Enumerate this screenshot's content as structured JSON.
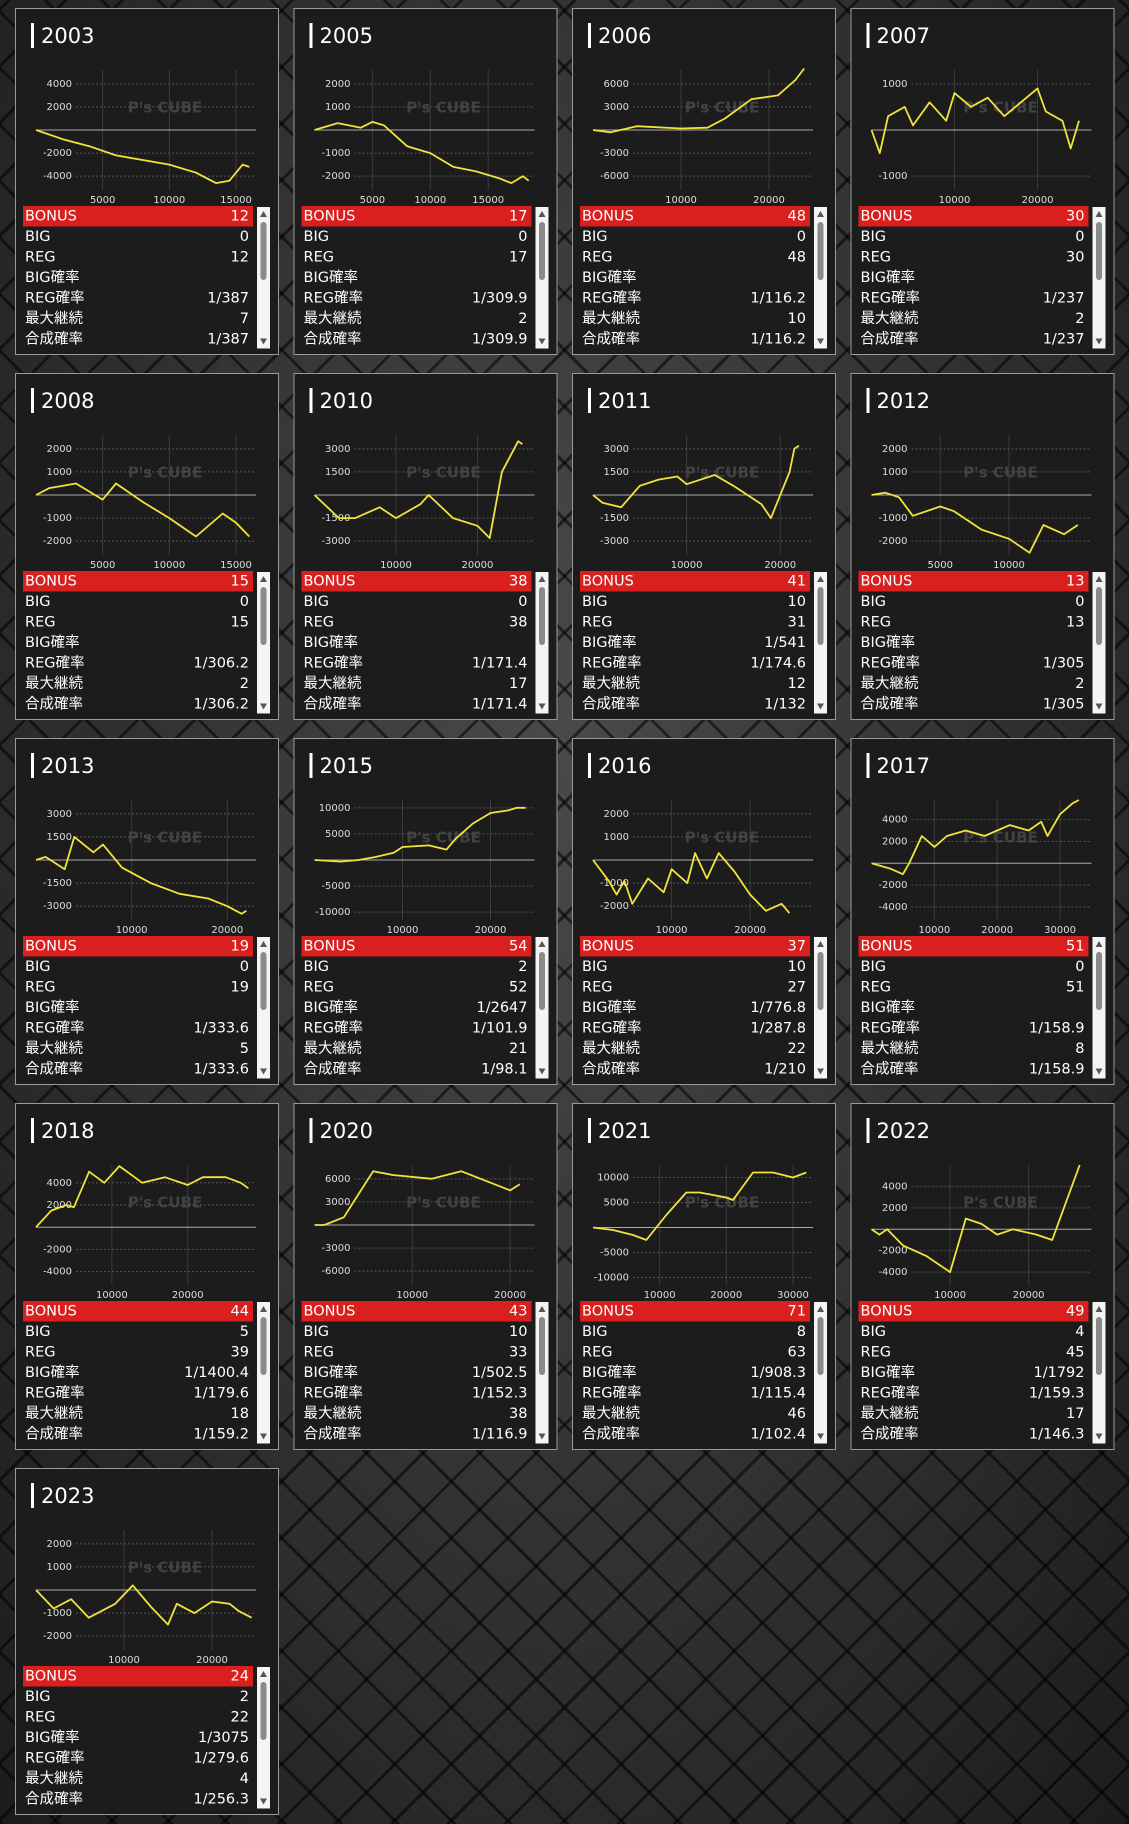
{
  "color": "#f2e33c",
  "watermark": "P's CUBE",
  "labels": [
    "BONUS",
    "BIG",
    "REG",
    "BIG確率",
    "REG確率",
    "最大継続",
    "合成確率"
  ],
  "cards": [
    {
      "title": "2003",
      "chart": {
        "type": "line",
        "x": [
          0,
          2000,
          4000,
          6000,
          8000,
          10000,
          12000,
          13500,
          14500,
          15500,
          16000
        ],
        "values": [
          0,
          -800,
          -1400,
          -2200,
          -2600,
          -3000,
          -3700,
          -4600,
          -4400,
          -3000,
          -3200
        ],
        "xlim": [
          0,
          16500
        ],
        "ylim": [
          -5200,
          5200
        ],
        "xticks": [
          5000,
          10000,
          15000
        ],
        "yticks": [
          4000,
          2000,
          -2000,
          -4000
        ]
      },
      "stats": [
        12,
        0,
        12,
        null,
        "1/387",
        7,
        "1/387"
      ]
    },
    {
      "title": "2005",
      "chart": {
        "type": "line",
        "x": [
          0,
          2000,
          4000,
          5000,
          6000,
          8000,
          10000,
          12000,
          14000,
          16000,
          17000,
          18000,
          18500
        ],
        "values": [
          0,
          300,
          100,
          350,
          200,
          -700,
          -1000,
          -1600,
          -1800,
          -2100,
          -2300,
          -2000,
          -2200
        ],
        "xlim": [
          0,
          19000
        ],
        "ylim": [
          -2600,
          2600
        ],
        "xticks": [
          5000,
          10000,
          15000
        ],
        "yticks": [
          2000,
          1000,
          -1000,
          -2000
        ]
      },
      "stats": [
        17,
        0,
        17,
        null,
        "1/309.9",
        2,
        "1/309.9"
      ]
    },
    {
      "title": "2006",
      "chart": {
        "type": "line",
        "x": [
          0,
          2000,
          5000,
          10000,
          13000,
          15000,
          18000,
          21000,
          23000,
          24000
        ],
        "values": [
          0,
          -300,
          500,
          200,
          300,
          1500,
          4000,
          4500,
          6500,
          8000
        ],
        "xlim": [
          0,
          25000
        ],
        "ylim": [
          -7800,
          7800
        ],
        "xticks": [
          10000,
          20000
        ],
        "yticks": [
          6000,
          3000,
          -3000,
          -6000
        ]
      },
      "stats": [
        48,
        0,
        48,
        null,
        "1/116.2",
        10,
        "1/116.2"
      ]
    },
    {
      "title": "2007",
      "chart": {
        "type": "line",
        "x": [
          0,
          1000,
          2000,
          4000,
          5000,
          7000,
          9000,
          10000,
          12000,
          14000,
          16000,
          18000,
          20000,
          21000,
          23000,
          24000,
          25000
        ],
        "values": [
          0,
          -500,
          300,
          500,
          100,
          600,
          200,
          800,
          500,
          700,
          300,
          600,
          900,
          400,
          200,
          -400,
          200
        ],
        "xlim": [
          0,
          26500
        ],
        "ylim": [
          -1300,
          1300
        ],
        "xticks": [
          10000,
          20000
        ],
        "yticks": [
          1000,
          -1000
        ]
      },
      "stats": [
        30,
        0,
        30,
        null,
        "1/237",
        2,
        "1/237"
      ]
    },
    {
      "title": "2008",
      "chart": {
        "type": "line",
        "x": [
          0,
          1000,
          3000,
          5000,
          6000,
          8000,
          10000,
          12000,
          14000,
          15000,
          16000
        ],
        "values": [
          0,
          300,
          500,
          -200,
          500,
          -300,
          -1000,
          -1800,
          -800,
          -1200,
          -1800
        ],
        "xlim": [
          0,
          16500
        ],
        "ylim": [
          -2600,
          2600
        ],
        "xticks": [
          5000,
          10000,
          15000
        ],
        "yticks": [
          2000,
          1000,
          -1000,
          -2000
        ]
      },
      "stats": [
        15,
        0,
        15,
        null,
        "1/306.2",
        2,
        "1/306.2"
      ]
    },
    {
      "title": "2010",
      "chart": {
        "type": "line",
        "x": [
          0,
          3000,
          5000,
          8000,
          10000,
          13000,
          14000,
          17000,
          20000,
          21500,
          23000,
          25000,
          25500
        ],
        "values": [
          0,
          -1500,
          -1500,
          -800,
          -1500,
          -600,
          0,
          -1500,
          -2000,
          -2800,
          1500,
          3500,
          3300
        ],
        "xlim": [
          0,
          27000
        ],
        "ylim": [
          -3900,
          3900
        ],
        "xticks": [
          10000,
          20000
        ],
        "yticks": [
          3000,
          1500,
          -1500,
          -3000
        ]
      },
      "stats": [
        38,
        0,
        38,
        null,
        "1/171.4",
        17,
        "1/171.4"
      ]
    },
    {
      "title": "2011",
      "chart": {
        "type": "line",
        "x": [
          0,
          1000,
          3000,
          5000,
          7000,
          9000,
          10000,
          13000,
          15000,
          18000,
          19000,
          21000,
          21500,
          22000
        ],
        "values": [
          0,
          -500,
          -800,
          600,
          1000,
          1200,
          700,
          1300,
          600,
          -600,
          -1500,
          1500,
          3000,
          3200
        ],
        "xlim": [
          0,
          23500
        ],
        "ylim": [
          -3900,
          3900
        ],
        "xticks": [
          10000,
          20000
        ],
        "yticks": [
          3000,
          1500,
          -1500,
          -3000
        ]
      },
      "stats": [
        41,
        10,
        31,
        "1/541",
        "1/174.6",
        12,
        "1/132"
      ]
    },
    {
      "title": "2012",
      "chart": {
        "type": "line",
        "x": [
          0,
          1000,
          2000,
          3000,
          5000,
          6000,
          8000,
          10000,
          11500,
          12500,
          14000,
          14500,
          15000
        ],
        "values": [
          0,
          100,
          -100,
          -900,
          -500,
          -700,
          -1500,
          -1900,
          -2500,
          -1300,
          -1700,
          -1500,
          -1300
        ],
        "xlim": [
          0,
          16000
        ],
        "ylim": [
          -2600,
          2600
        ],
        "xticks": [
          5000,
          10000
        ],
        "yticks": [
          2000,
          1000,
          -1000,
          -2000
        ]
      },
      "stats": [
        13,
        0,
        13,
        null,
        "1/305",
        2,
        "1/305"
      ]
    },
    {
      "title": "2013",
      "chart": {
        "type": "line",
        "x": [
          0,
          1000,
          3000,
          4000,
          6000,
          7000,
          9000,
          12000,
          15000,
          18000,
          20000,
          21500,
          22000
        ],
        "values": [
          0,
          200,
          -600,
          1500,
          500,
          1000,
          -500,
          -1500,
          -2200,
          -2500,
          -3000,
          -3500,
          -3300
        ],
        "xlim": [
          0,
          23000
        ],
        "ylim": [
          -3900,
          3900
        ],
        "xticks": [
          10000,
          20000
        ],
        "yticks": [
          3000,
          1500,
          -1500,
          -3000
        ]
      },
      "stats": [
        19,
        0,
        19,
        null,
        "1/333.6",
        5,
        "1/333.6"
      ]
    },
    {
      "title": "2015",
      "chart": {
        "type": "line",
        "x": [
          0,
          3000,
          5000,
          7000,
          9000,
          10000,
          13000,
          15000,
          16000,
          18000,
          20000,
          22000,
          23000,
          24000
        ],
        "values": [
          0,
          -300,
          0,
          600,
          1400,
          2500,
          2800,
          2000,
          4000,
          7000,
          9000,
          9500,
          10000,
          10000
        ],
        "xlim": [
          0,
          25000
        ],
        "ylim": [
          -11500,
          11500
        ],
        "xticks": [
          10000,
          20000
        ],
        "yticks": [
          10000,
          5000,
          -5000,
          -10000
        ]
      },
      "stats": [
        54,
        2,
        52,
        "1/2647",
        "1/101.9",
        21,
        "1/98.1"
      ]
    },
    {
      "title": "2016",
      "chart": {
        "type": "line",
        "x": [
          0,
          2000,
          3000,
          4000,
          5000,
          7000,
          9000,
          10000,
          12000,
          13000,
          14500,
          16000,
          18000,
          20000,
          22000,
          24000,
          25000
        ],
        "values": [
          0,
          -900,
          -1500,
          -900,
          -1900,
          -800,
          -1400,
          -400,
          -1000,
          300,
          -800,
          300,
          -500,
          -1500,
          -2200,
          -1900,
          -2300
        ],
        "xlim": [
          0,
          28000
        ],
        "ylim": [
          -2600,
          2600
        ],
        "xticks": [
          10000,
          20000
        ],
        "yticks": [
          2000,
          1000,
          -1000,
          -2000
        ]
      },
      "stats": [
        37,
        10,
        27,
        "1/776.8",
        "1/287.8",
        22,
        "1/210"
      ]
    },
    {
      "title": "2017",
      "chart": {
        "type": "line",
        "x": [
          0,
          3000,
          5000,
          6000,
          8000,
          10000,
          12000,
          15000,
          18000,
          20000,
          22000,
          25000,
          27000,
          28000,
          30000,
          32000,
          33000
        ],
        "values": [
          0,
          -500,
          -1000,
          0,
          2500,
          1500,
          2500,
          3000,
          2500,
          3000,
          3500,
          3000,
          3800,
          2500,
          4500,
          5500,
          5800
        ],
        "xlim": [
          0,
          35000
        ],
        "ylim": [
          -5200,
          5800
        ],
        "xticks": [
          10000,
          20000,
          30000
        ],
        "yticks": [
          4000,
          2000,
          -2000,
          -4000
        ]
      },
      "stats": [
        51,
        0,
        51,
        null,
        "1/158.9",
        8,
        "1/158.9"
      ]
    },
    {
      "title": "2018",
      "chart": {
        "type": "line",
        "x": [
          0,
          2000,
          4000,
          5000,
          7000,
          9000,
          11000,
          14000,
          17000,
          20000,
          22000,
          25000,
          27000,
          28000
        ],
        "values": [
          0,
          1500,
          2000,
          1800,
          5000,
          4000,
          5500,
          4000,
          4500,
          3800,
          4500,
          4500,
          4000,
          3500
        ],
        "xlim": [
          0,
          29000
        ],
        "ylim": [
          -5200,
          5600
        ],
        "xticks": [
          10000,
          20000
        ],
        "yticks": [
          4000,
          2000,
          -2000,
          -4000
        ]
      },
      "stats": [
        44,
        5,
        39,
        "1/1400.4",
        "1/179.6",
        18,
        "1/159.2"
      ]
    },
    {
      "title": "2020",
      "chart": {
        "type": "line",
        "x": [
          0,
          1000,
          3000,
          5000,
          6000,
          8000,
          12000,
          15000,
          18000,
          20000,
          21000
        ],
        "values": [
          0,
          0,
          1000,
          5000,
          7000,
          6500,
          6000,
          7000,
          5500,
          4500,
          5300
        ],
        "xlim": [
          0,
          22500
        ],
        "ylim": [
          -7800,
          7800
        ],
        "xticks": [
          10000,
          20000
        ],
        "yticks": [
          6000,
          3000,
          -3000,
          -6000
        ]
      },
      "stats": [
        43,
        10,
        33,
        "1/502.5",
        "1/152.3",
        38,
        "1/116.9"
      ]
    },
    {
      "title": "2021",
      "chart": {
        "type": "line",
        "x": [
          0,
          3000,
          6000,
          8000,
          11000,
          14000,
          16000,
          20000,
          21000,
          24000,
          27000,
          30000,
          32000
        ],
        "values": [
          0,
          -500,
          -1500,
          -2500,
          2500,
          7000,
          7000,
          6000,
          5500,
          11000,
          11000,
          10000,
          11000
        ],
        "xlim": [
          0,
          33000
        ],
        "ylim": [
          -11500,
          12500
        ],
        "xticks": [
          10000,
          20000,
          30000
        ],
        "yticks": [
          10000,
          5000,
          -5000,
          -10000
        ]
      },
      "stats": [
        71,
        8,
        63,
        "1/908.3",
        "1/115.4",
        46,
        "1/102.4"
      ]
    },
    {
      "title": "2022",
      "chart": {
        "type": "line",
        "x": [
          0,
          1000,
          2000,
          4000,
          7000,
          9000,
          10000,
          12000,
          14000,
          16000,
          18000,
          21000,
          23000,
          25000,
          26500
        ],
        "values": [
          0,
          -500,
          0,
          -1500,
          -2500,
          -3500,
          -4000,
          1000,
          500,
          -500,
          0,
          -500,
          -1000,
          3000,
          6000
        ],
        "xlim": [
          0,
          28000
        ],
        "ylim": [
          -5200,
          6000
        ],
        "xticks": [
          10000,
          20000
        ],
        "yticks": [
          4000,
          2000,
          -2000,
          -4000
        ]
      },
      "stats": [
        49,
        4,
        45,
        "1/1792",
        "1/159.3",
        17,
        "1/146.3"
      ]
    },
    {
      "title": "2023",
      "chart": {
        "type": "line",
        "x": [
          0,
          2000,
          4000,
          6000,
          9000,
          11000,
          13000,
          15000,
          16000,
          18000,
          20000,
          22000,
          23000,
          24500
        ],
        "values": [
          0,
          -800,
          -400,
          -1200,
          -600,
          200,
          -700,
          -1500,
          -600,
          -1000,
          -500,
          -600,
          -900,
          -1200
        ],
        "xlim": [
          0,
          25000
        ],
        "ylim": [
          -2600,
          2600
        ],
        "xticks": [
          10000,
          20000
        ],
        "yticks": [
          2000,
          1000,
          -1000,
          -2000
        ]
      },
      "stats": [
        24,
        2,
        22,
        "1/3075",
        "1/279.6",
        4,
        "1/256.3"
      ]
    }
  ]
}
